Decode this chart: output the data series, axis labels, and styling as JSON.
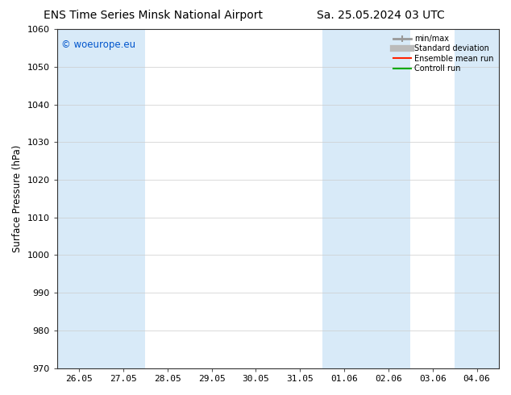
{
  "title_left": "ENS Time Series Minsk National Airport",
  "title_right": "Sa. 25.05.2024 03 UTC",
  "ylabel": "Surface Pressure (hPa)",
  "ylim": [
    970,
    1060
  ],
  "yticks": [
    970,
    980,
    990,
    1000,
    1010,
    1020,
    1030,
    1040,
    1050,
    1060
  ],
  "xtick_labels": [
    "26.05",
    "27.05",
    "28.05",
    "29.05",
    "30.05",
    "31.05",
    "01.06",
    "02.06",
    "03.06",
    "04.06"
  ],
  "watermark": "© woeurope.eu",
  "watermark_color": "#0055cc",
  "bg_color": "#ffffff",
  "shaded_color": "#d8eaf8",
  "legend_labels": [
    "min/max",
    "Standard deviation",
    "Ensemble mean run",
    "Controll run"
  ],
  "legend_line_colors": [
    "#aaaaaa",
    "#bbbbbb",
    "#ff0000",
    "#00aa00"
  ],
  "title_fontsize": 10,
  "axis_fontsize": 8.5,
  "tick_fontsize": 8,
  "watermark_fontsize": 8.5
}
